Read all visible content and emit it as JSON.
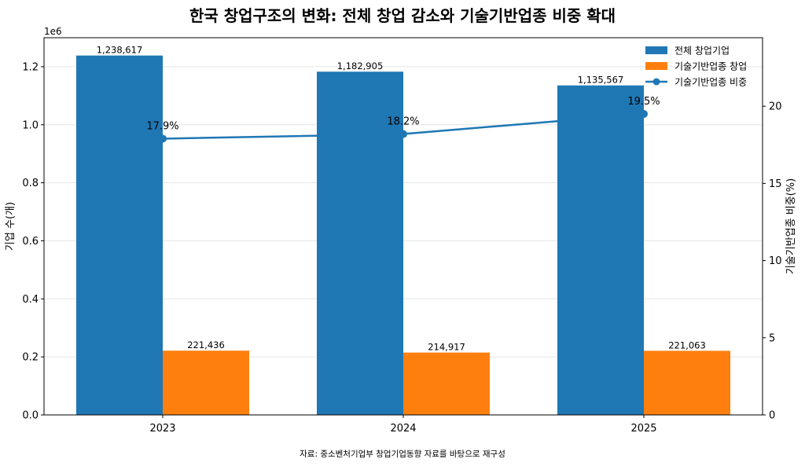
{
  "chart_data": {
    "type": "bar",
    "title": "한국 창업구조의 변화: 전체 창업 감소와 기술기반업종 비중 확대",
    "categories": [
      "2023",
      "2024",
      "2025"
    ],
    "series": [
      {
        "name": "전체 창업기업",
        "values": [
          1238617,
          1182905,
          1135567
        ],
        "value_labels": [
          "1,238,617",
          "1,182,905",
          "1,135,567"
        ],
        "color": "#1f77b4",
        "axis": "left"
      },
      {
        "name": "기술기반업종 창업",
        "values": [
          221436,
          214917,
          221063
        ],
        "value_labels": [
          "221,436",
          "214,917",
          "221,063"
        ],
        "color": "#ff7f0e",
        "axis": "left"
      },
      {
        "name": "기술기반업종 비중",
        "type": "line",
        "values": [
          17.9,
          18.2,
          19.5
        ],
        "value_labels": [
          "17.9%",
          "18.2%",
          "19.5%"
        ],
        "color": "#1f77b4",
        "axis": "right"
      }
    ],
    "ylabel": "기업 수(개)",
    "y_scale_label": "1e6",
    "ylim": [
      0,
      1.3
    ],
    "yticks": [
      "0.0",
      "0.2",
      "0.4",
      "0.6",
      "0.8",
      "1.0",
      "1.2"
    ],
    "y2label": "기술기반업종 비중(%)",
    "y2lim": [
      0,
      24.44
    ],
    "y2ticks": [
      "0",
      "5",
      "10",
      "15",
      "20"
    ],
    "grid": "horizontal",
    "legend_position": "top-right",
    "source_note": "자료: 중소벤처기업부 창업기업동향 자료를 바탕으로 재구성"
  }
}
